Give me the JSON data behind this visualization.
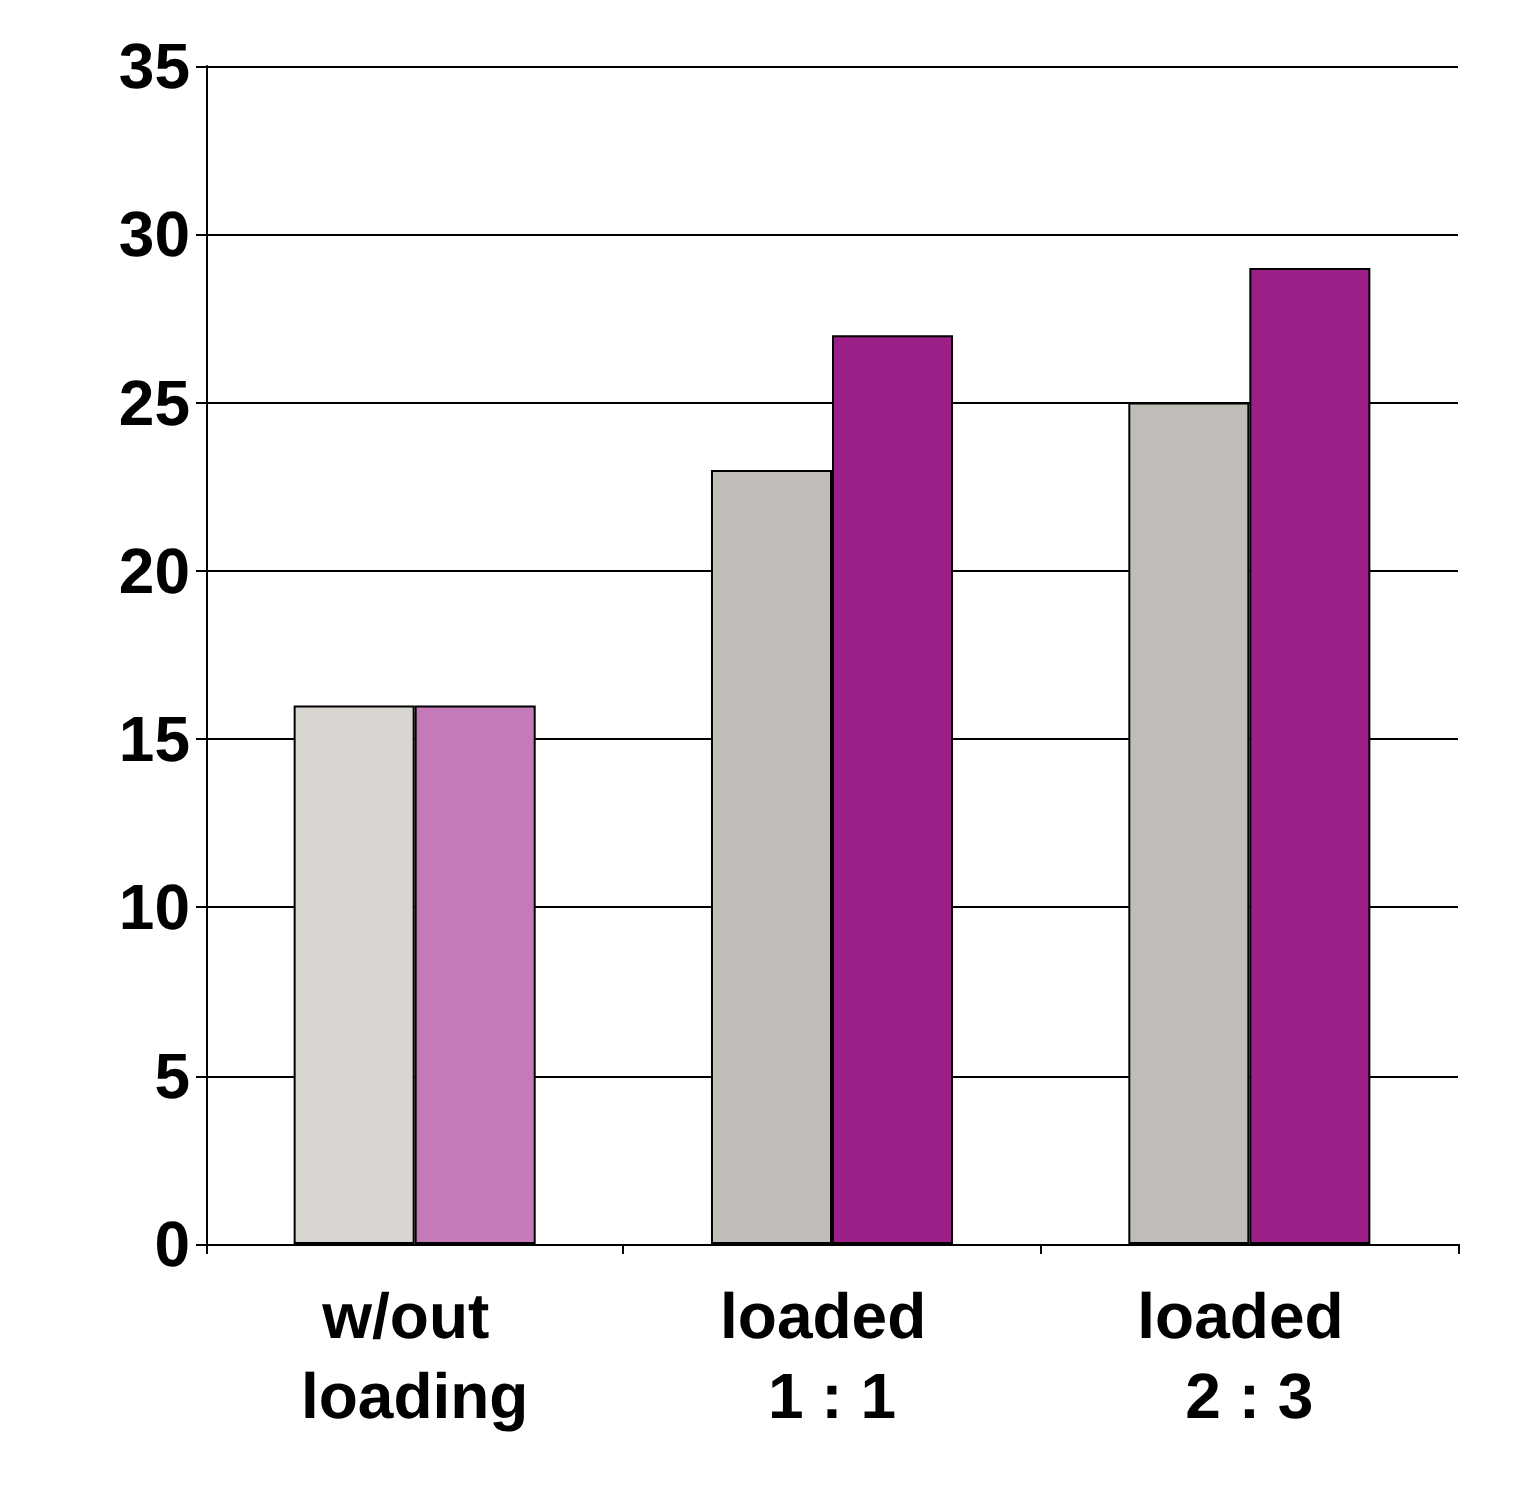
{
  "chart_data": {
    "type": "bar",
    "categories": [
      "w/out loading",
      "loaded 1 : 1",
      "loaded 2 : 3"
    ],
    "series": [
      {
        "colors": [
          "#d8d4d0",
          "#c0bcb8",
          "#c0bcb8"
        ],
        "values": [
          16,
          23,
          25
        ]
      },
      {
        "colors": [
          "#c47ab8",
          "#9b1f87",
          "#9b1f87"
        ],
        "values": [
          16,
          27,
          29
        ]
      }
    ],
    "ylim": [
      0,
      35
    ],
    "yticks": [
      0,
      5,
      10,
      15,
      20,
      25,
      30,
      35
    ],
    "grid": "y"
  }
}
